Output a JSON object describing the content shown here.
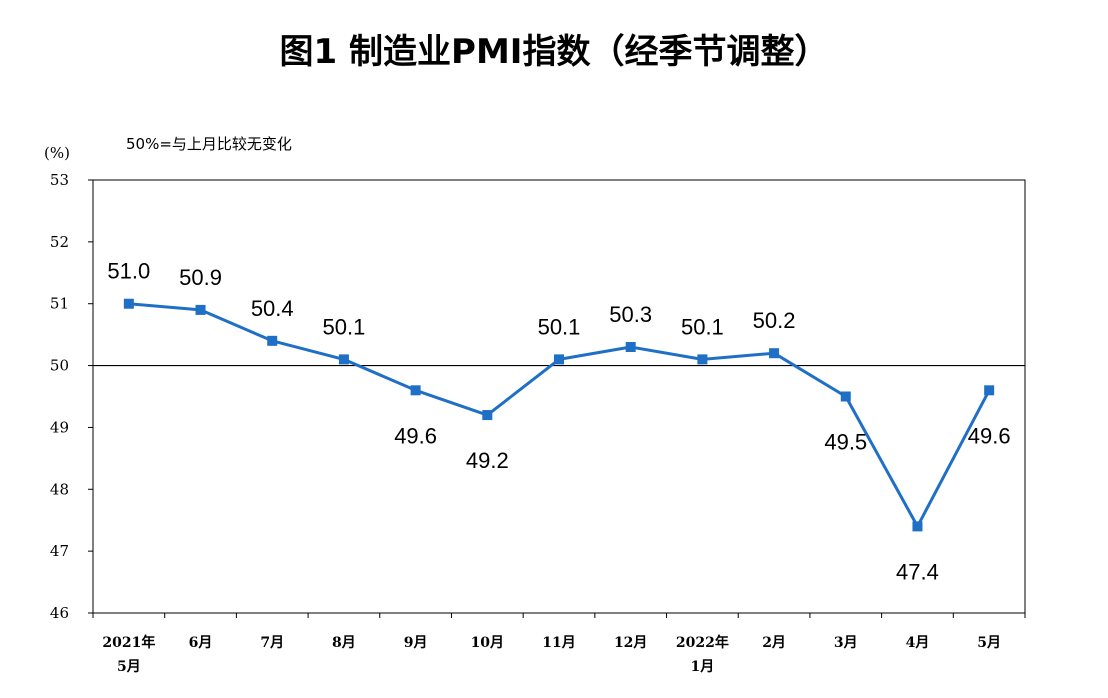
{
  "chart_data": {
    "type": "line",
    "title": "图1 制造业PMI指数（经季节调整）",
    "note": "50%=与上月比较无变化",
    "ylabel": "(%)",
    "ylim": [
      46,
      53
    ],
    "yticks": [
      46,
      47,
      48,
      49,
      50,
      51,
      52,
      53
    ],
    "reference_line": 50,
    "categories": [
      [
        "2021年",
        "5月"
      ],
      [
        "6月"
      ],
      [
        "7月"
      ],
      [
        "8月"
      ],
      [
        "9月"
      ],
      [
        "10月"
      ],
      [
        "11月"
      ],
      [
        "12月"
      ],
      [
        "2022年",
        "1月"
      ],
      [
        "2月"
      ],
      [
        "3月"
      ],
      [
        "4月"
      ],
      [
        "5月"
      ]
    ],
    "series": [
      {
        "values": [
          51.0,
          50.9,
          50.4,
          50.1,
          49.6,
          49.2,
          50.1,
          50.3,
          50.1,
          50.2,
          49.5,
          47.4,
          49.6
        ],
        "labels": [
          "51.0",
          "50.9",
          "50.4",
          "50.1",
          "49.6",
          "49.2",
          "50.1",
          "50.3",
          "50.1",
          "50.2",
          "49.5",
          "47.4",
          "49.6"
        ],
        "color": "#1f6fc6"
      }
    ],
    "label_positions": [
      "above",
      "above",
      "above",
      "above",
      "below",
      "below",
      "above",
      "above",
      "above",
      "above",
      "below",
      "below",
      "below"
    ],
    "grid": false
  }
}
